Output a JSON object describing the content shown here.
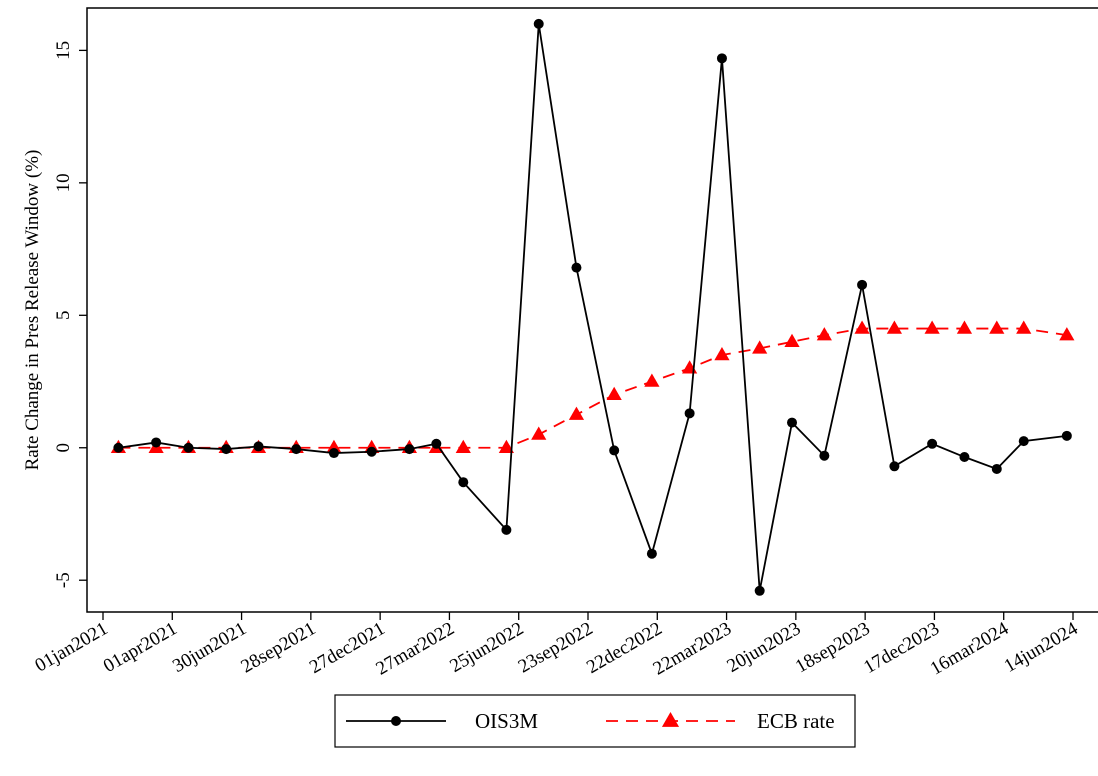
{
  "chart_data": {
    "type": "line",
    "title": "",
    "xlabel": "",
    "ylabel": "Rate Change in Pres Release Window (%)",
    "x_axis_type": "date",
    "x_tick_labels": [
      "01jan2021",
      "01apr2021",
      "30jun2021",
      "28sep2021",
      "27dec2021",
      "27mar2022",
      "25jun2022",
      "23sep2022",
      "22dec2022",
      "22mar2023",
      "20jun2023",
      "18sep2023",
      "17dec2023",
      "16mar2024",
      "14jun2024"
    ],
    "y_ticks": [
      -5,
      0,
      5,
      10,
      15
    ],
    "y_tick_labels": [
      "-5",
      "0",
      "5",
      "10",
      "15"
    ],
    "xlim": [
      "2021-01-01",
      "2024-06-30"
    ],
    "ylim": [
      -6.2,
      16.6
    ],
    "grid": false,
    "legend_position": "bottom-center",
    "series": [
      {
        "name": "OIS3M",
        "color": "#000000",
        "line_style": "solid",
        "marker": "circle",
        "x": [
          "2021-01-21",
          "2021-03-11",
          "2021-04-22",
          "2021-06-10",
          "2021-07-22",
          "2021-09-09",
          "2021-10-28",
          "2021-12-16",
          "2022-02-03",
          "2022-03-10",
          "2022-04-14",
          "2022-06-09",
          "2022-07-21",
          "2022-09-08",
          "2022-10-27",
          "2022-12-15",
          "2023-02-02",
          "2023-03-16",
          "2023-05-04",
          "2023-06-15",
          "2023-07-27",
          "2023-09-14",
          "2023-10-26",
          "2023-12-14",
          "2024-01-25",
          "2024-03-07",
          "2024-04-11",
          "2024-06-06"
        ],
        "y": [
          0.0,
          0.2,
          0.0,
          -0.05,
          0.05,
          -0.05,
          -0.2,
          -0.15,
          -0.05,
          0.15,
          -1.3,
          -3.1,
          16.0,
          6.8,
          -0.1,
          -4.0,
          1.3,
          14.7,
          -5.4,
          0.95,
          -0.3,
          6.15,
          -0.7,
          0.15,
          -0.35,
          -0.8,
          0.25,
          0.45
        ]
      },
      {
        "name": "ECB rate",
        "color": "#ff0000",
        "line_style": "dashed",
        "marker": "triangle",
        "x": [
          "2021-01-21",
          "2021-03-11",
          "2021-04-22",
          "2021-06-10",
          "2021-07-22",
          "2021-09-09",
          "2021-10-28",
          "2021-12-16",
          "2022-02-03",
          "2022-03-10",
          "2022-04-14",
          "2022-06-09",
          "2022-07-21",
          "2022-09-08",
          "2022-10-27",
          "2022-12-15",
          "2023-02-02",
          "2023-03-16",
          "2023-05-04",
          "2023-06-15",
          "2023-07-27",
          "2023-09-14",
          "2023-10-26",
          "2023-12-14",
          "2024-01-25",
          "2024-03-07",
          "2024-04-11",
          "2024-06-06"
        ],
        "y": [
          0,
          0,
          0,
          0,
          0,
          0,
          0,
          0,
          0,
          0,
          0,
          0,
          0.5,
          1.25,
          2.0,
          2.5,
          3.0,
          3.5,
          3.75,
          4.0,
          4.25,
          4.5,
          4.5,
          4.5,
          4.5,
          4.5,
          4.5,
          4.25
        ]
      }
    ]
  }
}
